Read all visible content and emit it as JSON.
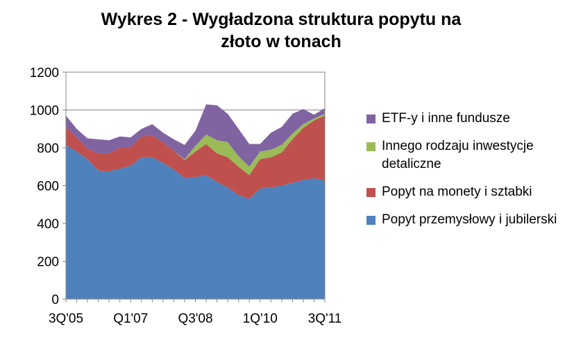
{
  "chart_data": {
    "type": "area",
    "stacked": true,
    "title_lines": [
      "Wykres 2 - Wygładzona struktura popytu na",
      "złoto w tonach"
    ],
    "xlabel": "",
    "ylabel": "",
    "ylim": [
      0,
      1200
    ],
    "yticks": [
      0,
      200,
      400,
      600,
      800,
      1000,
      1200
    ],
    "x": [
      "3Q'05",
      "4Q'05",
      "1Q'06",
      "2Q'06",
      "3Q'06",
      "4Q'06",
      "Q1'07",
      "2Q'07",
      "3Q'07",
      "4Q'07",
      "1Q'08",
      "2Q'08",
      "Q3'08",
      "4Q'08",
      "1Q'09",
      "2Q'09",
      "3Q'09",
      "4Q'09",
      "1Q'10",
      "2Q'10",
      "3Q'10",
      "4Q'10",
      "1Q'11",
      "2Q'11",
      "3Q'11"
    ],
    "x_tick_labels": [
      {
        "index": 0,
        "label": "3Q'05"
      },
      {
        "index": 6,
        "label": "Q1'07"
      },
      {
        "index": 12,
        "label": "Q3'08"
      },
      {
        "index": 18,
        "label": "1Q'10"
      },
      {
        "index": 24,
        "label": "3Q'11"
      }
    ],
    "grid": "horizontal",
    "legend_position": "right",
    "series": [
      {
        "name": "Popyt przemysłowy i jubilerski",
        "color": "#4f81bd",
        "values": [
          815,
          780,
          740,
          680,
          675,
          690,
          705,
          750,
          750,
          720,
          685,
          640,
          645,
          655,
          620,
          590,
          550,
          530,
          585,
          590,
          600,
          615,
          630,
          640,
          625
        ]
      },
      {
        "name": "Popyt na monety i sztabki",
        "color": "#c0504d",
        "values": [
          95,
          75,
          55,
          90,
          95,
          110,
          100,
          110,
          115,
          110,
          100,
          95,
          135,
          165,
          150,
          160,
          150,
          125,
          155,
          160,
          175,
          230,
          275,
          305,
          345
        ]
      },
      {
        "name": "Innego rodzaju inwestycje detaliczne",
        "color": "#9bbb59",
        "values": [
          0,
          0,
          0,
          0,
          0,
          0,
          0,
          0,
          0,
          0,
          0,
          5,
          30,
          50,
          70,
          80,
          55,
          45,
          40,
          40,
          40,
          30,
          20,
          10,
          10
        ]
      },
      {
        "name": "ETF-y i inne fundusze",
        "color": "#8064a2",
        "values": [
          60,
          45,
          55,
          75,
          70,
          60,
          50,
          40,
          60,
          50,
          60,
          75,
          80,
          160,
          185,
          150,
          145,
          120,
          40,
          90,
          95,
          105,
          80,
          20,
          30
        ]
      }
    ]
  }
}
